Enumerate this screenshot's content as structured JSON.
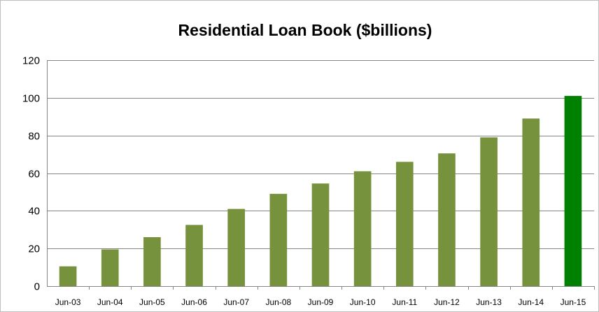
{
  "chart_data": {
    "type": "bar",
    "title": "Residential Loan Book ($billions)",
    "xlabel": "",
    "ylabel": "",
    "ylim": [
      0,
      120
    ],
    "yticks": [
      0,
      20,
      40,
      60,
      80,
      100,
      120
    ],
    "grid": true,
    "legend": "none",
    "categories": [
      "Jun-03",
      "Jun-04",
      "Jun-05",
      "Jun-06",
      "Jun-07",
      "Jun-08",
      "Jun-09",
      "Jun-10",
      "Jun-11",
      "Jun-12",
      "Jun-13",
      "Jun-14",
      "Jun-15"
    ],
    "values": [
      10.5,
      19.5,
      26,
      32.5,
      41,
      49,
      54.5,
      61,
      66,
      70.5,
      79,
      89,
      101
    ],
    "colors": {
      "bar": "#76923c",
      "highlight": "#008000",
      "grid": "#868686",
      "axis": "#868686"
    },
    "highlight_category": "Jun-15"
  }
}
